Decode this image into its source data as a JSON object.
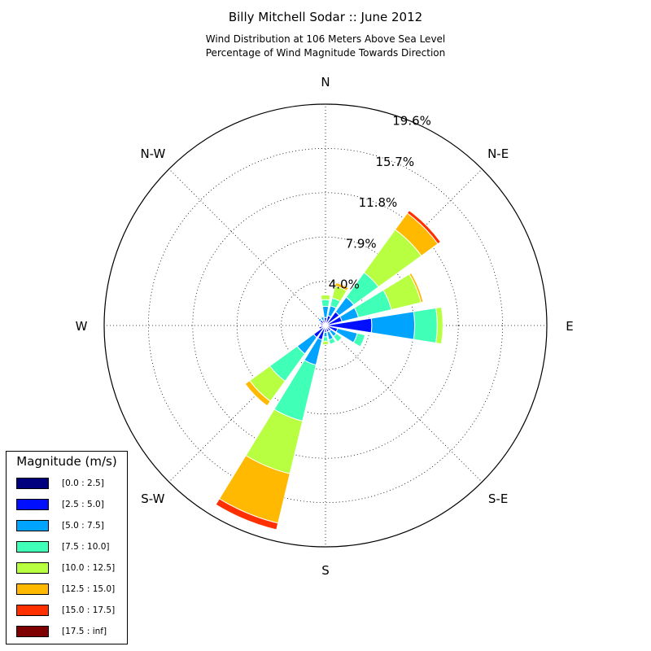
{
  "chart_data": {
    "type": "windrose",
    "title": "Billy Mitchell Sodar :: June 2012",
    "subtitle_line1": "Wind Distribution at 106 Meters Above Sea Level",
    "subtitle_line2": "Percentage of Wind Magnitude Towards Direction",
    "direction_labels": [
      "N",
      "N-E",
      "E",
      "S-E",
      "S",
      "S-W",
      "W",
      "N-W"
    ],
    "radial_ticks": [
      "4.0%",
      "7.9%",
      "11.8%",
      "15.7%",
      "19.6%"
    ],
    "radial_tick_values": [
      3.92,
      7.84,
      11.76,
      15.68,
      19.6
    ],
    "r_max": 19.6,
    "legend_title": "Magnitude (m/s)",
    "bins": [
      "[0.0 : 2.5]",
      "[2.5 : 5.0]",
      "[5.0 : 7.5]",
      "[7.5 : 10.0]",
      "[10.0 : 12.5]",
      "[12.5 : 15.0]",
      "[15.0 : 17.5]",
      "[17.5 : inf]"
    ],
    "bin_colors": [
      "#00007f",
      "#0010ff",
      "#00a4ff",
      "#40ffb7",
      "#b7ff40",
      "#ffb900",
      "#ff3000",
      "#7f0000"
    ],
    "sectors": [
      {
        "direction": 0,
        "stack": [
          0.1,
          0.6,
          1.0,
          0.6,
          0.4,
          0.0,
          0.0,
          0.0
        ]
      },
      {
        "direction": 22.5,
        "stack": [
          0.1,
          0.8,
          0.9,
          0.7,
          1.1,
          0.3,
          0.0,
          0.0
        ]
      },
      {
        "direction": 45,
        "stack": [
          0.1,
          1.4,
          1.6,
          2.7,
          4.7,
          1.8,
          0.3,
          0.0
        ]
      },
      {
        "direction": 67.5,
        "stack": [
          0.1,
          1.4,
          1.5,
          3.0,
          2.7,
          0.2,
          0.0,
          0.0
        ]
      },
      {
        "direction": 90,
        "stack": [
          0.1,
          4.0,
          3.8,
          2.0,
          0.5,
          0.0,
          0.0,
          0.0
        ]
      },
      {
        "direction": 112.5,
        "stack": [
          0.1,
          1.0,
          1.8,
          0.7,
          0.0,
          0.0,
          0.0,
          0.0
        ]
      },
      {
        "direction": 135,
        "stack": [
          0.1,
          0.5,
          0.6,
          0.6,
          0.0,
          0.0,
          0.0,
          0.0
        ]
      },
      {
        "direction": 157.5,
        "stack": [
          0.1,
          0.5,
          0.7,
          0.4,
          0.0,
          0.0,
          0.0,
          0.0
        ]
      },
      {
        "direction": 180,
        "stack": [
          0.1,
          0.5,
          0.4,
          0.4,
          0.3,
          0.0,
          0.0,
          0.0
        ]
      },
      {
        "direction": 202.5,
        "stack": [
          0.1,
          1.2,
          2.3,
          5.1,
          4.8,
          4.5,
          0.6,
          0.0
        ]
      },
      {
        "direction": 225,
        "stack": [
          0.1,
          1.2,
          1.8,
          3.0,
          2.2,
          0.5,
          0.0,
          0.0
        ]
      },
      {
        "direction": 247.5,
        "stack": [
          0.1,
          0.5,
          0.0,
          0.0,
          0.0,
          0.0,
          0.0,
          0.0
        ]
      },
      {
        "direction": 270,
        "stack": [
          0.1,
          0.3,
          0.0,
          0.0,
          0.0,
          0.0,
          0.0,
          0.0
        ]
      },
      {
        "direction": 292.5,
        "stack": [
          0.1,
          0.4,
          0.1,
          0.0,
          0.0,
          0.0,
          0.0,
          0.0
        ]
      },
      {
        "direction": 315,
        "stack": [
          0.1,
          0.5,
          0.2,
          0.0,
          0.0,
          0.0,
          0.0,
          0.0
        ]
      },
      {
        "direction": 337.5,
        "stack": [
          0.1,
          0.4,
          0.3,
          0.1,
          0.0,
          0.0,
          0.0,
          0.0
        ]
      }
    ],
    "grid": true
  }
}
